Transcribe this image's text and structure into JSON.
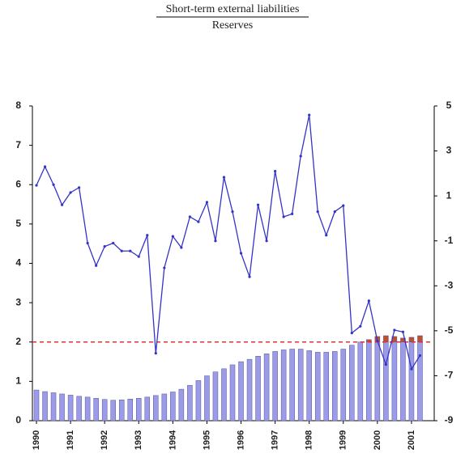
{
  "chart_data": {
    "type": "bar-line",
    "title": "Short-term external liabilities",
    "subtitle": "Reserves",
    "categories": [
      "1990",
      null,
      null,
      null,
      "1991",
      null,
      null,
      null,
      "1992",
      null,
      null,
      null,
      "1993",
      null,
      null,
      null,
      "1994",
      null,
      null,
      null,
      "1995",
      null,
      null,
      null,
      "1996",
      null,
      null,
      null,
      "1997",
      null,
      null,
      null,
      "1998",
      null,
      null,
      null,
      "1999",
      null,
      null,
      null,
      "2000",
      null,
      null,
      null,
      "2001",
      null
    ],
    "series": [
      {
        "type": "bar",
        "color": "#9b9be8",
        "threshold_color": "#c0502b",
        "values": [
          0.78,
          0.74,
          0.71,
          0.68,
          0.65,
          0.62,
          0.6,
          0.57,
          0.54,
          0.52,
          0.53,
          0.55,
          0.57,
          0.6,
          0.64,
          0.68,
          0.73,
          0.8,
          0.9,
          1.02,
          1.14,
          1.24,
          1.32,
          1.42,
          1.5,
          1.56,
          1.64,
          1.7,
          1.76,
          1.8,
          1.82,
          1.82,
          1.78,
          1.74,
          1.74,
          1.76,
          1.82,
          1.92,
          2.0,
          2.06,
          2.14,
          2.16,
          2.14,
          2.1,
          2.12,
          2.16
        ]
      },
      {
        "type": "line",
        "axis": "y2",
        "color": "#3434c8",
        "values": [
          1.47,
          2.3,
          1.5,
          0.6,
          1.15,
          1.37,
          -1.1,
          -2.1,
          -1.25,
          -1.1,
          -1.45,
          -1.45,
          -1.7,
          -0.75,
          -6.0,
          -2.2,
          -0.8,
          -1.3,
          0.07,
          -0.15,
          0.72,
          -1.0,
          1.83,
          0.3,
          -1.55,
          -2.6,
          0.6,
          -1.0,
          2.1,
          0.07,
          0.2,
          2.77,
          4.6,
          0.3,
          -0.75,
          0.3,
          0.57,
          -5.1,
          -4.8,
          -3.67,
          -5.45,
          -6.5,
          -4.97,
          -5.05,
          -6.7,
          -6.1
        ]
      }
    ],
    "reference_line": {
      "value": 2,
      "color": "#e03030"
    },
    "ylim": [
      0,
      8
    ],
    "yticks": [
      0,
      1,
      2,
      3,
      4,
      5,
      6,
      7,
      8
    ],
    "y2lim": [
      -9,
      5
    ],
    "y2ticks": [
      -9,
      -7,
      -5,
      -3,
      -1,
      1,
      3,
      5
    ],
    "grid": false
  }
}
